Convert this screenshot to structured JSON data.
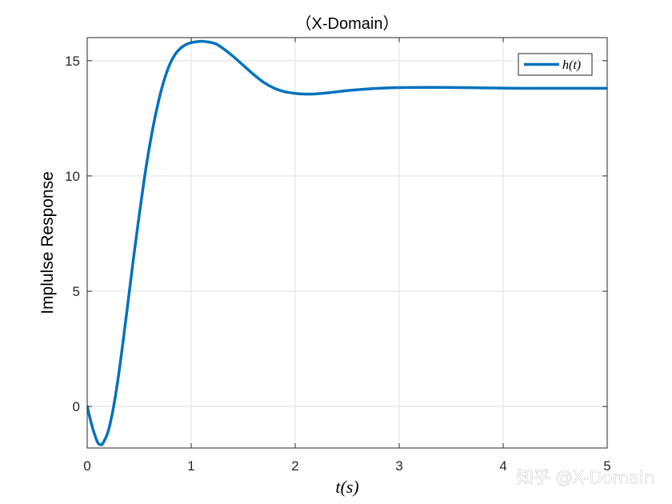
{
  "chart_data": {
    "type": "line",
    "title": "（X-Domain）",
    "xlabel": "t(s)",
    "ylabel": "Implulse Response",
    "xlim": [
      0,
      5
    ],
    "ylim": [
      -1.8,
      16
    ],
    "xticks": [
      0,
      1,
      2,
      3,
      4,
      5
    ],
    "yticks": [
      0,
      5,
      10,
      15
    ],
    "grid": true,
    "legend_position": "top-right",
    "series": [
      {
        "name": "h(t)",
        "color": "#0072BD",
        "x": [
          0,
          0.05,
          0.1,
          0.13,
          0.15,
          0.2,
          0.25,
          0.3,
          0.35,
          0.4,
          0.45,
          0.5,
          0.55,
          0.6,
          0.65,
          0.7,
          0.75,
          0.8,
          0.85,
          0.9,
          0.95,
          1.0,
          1.05,
          1.1,
          1.15,
          1.2,
          1.25,
          1.3,
          1.4,
          1.5,
          1.6,
          1.7,
          1.8,
          1.9,
          2.0,
          2.1,
          2.2,
          2.3,
          2.4,
          2.5,
          2.6,
          2.8,
          3.0,
          3.2,
          3.4,
          3.6,
          3.8,
          4.0,
          4.2,
          4.4,
          4.6,
          4.8,
          5.0
        ],
        "y": [
          0,
          -0.9,
          -1.55,
          -1.65,
          -1.6,
          -1.1,
          -0.1,
          1.3,
          3.0,
          4.8,
          6.6,
          8.3,
          9.9,
          11.3,
          12.5,
          13.5,
          14.3,
          14.9,
          15.3,
          15.55,
          15.7,
          15.78,
          15.82,
          15.84,
          15.82,
          15.78,
          15.7,
          15.55,
          15.2,
          14.8,
          14.4,
          14.05,
          13.8,
          13.65,
          13.58,
          13.55,
          13.56,
          13.6,
          13.65,
          13.7,
          13.74,
          13.8,
          13.83,
          13.84,
          13.84,
          13.83,
          13.82,
          13.81,
          13.8,
          13.8,
          13.8,
          13.8,
          13.8
        ]
      }
    ]
  },
  "watermark": "知乎 @X-Domain"
}
